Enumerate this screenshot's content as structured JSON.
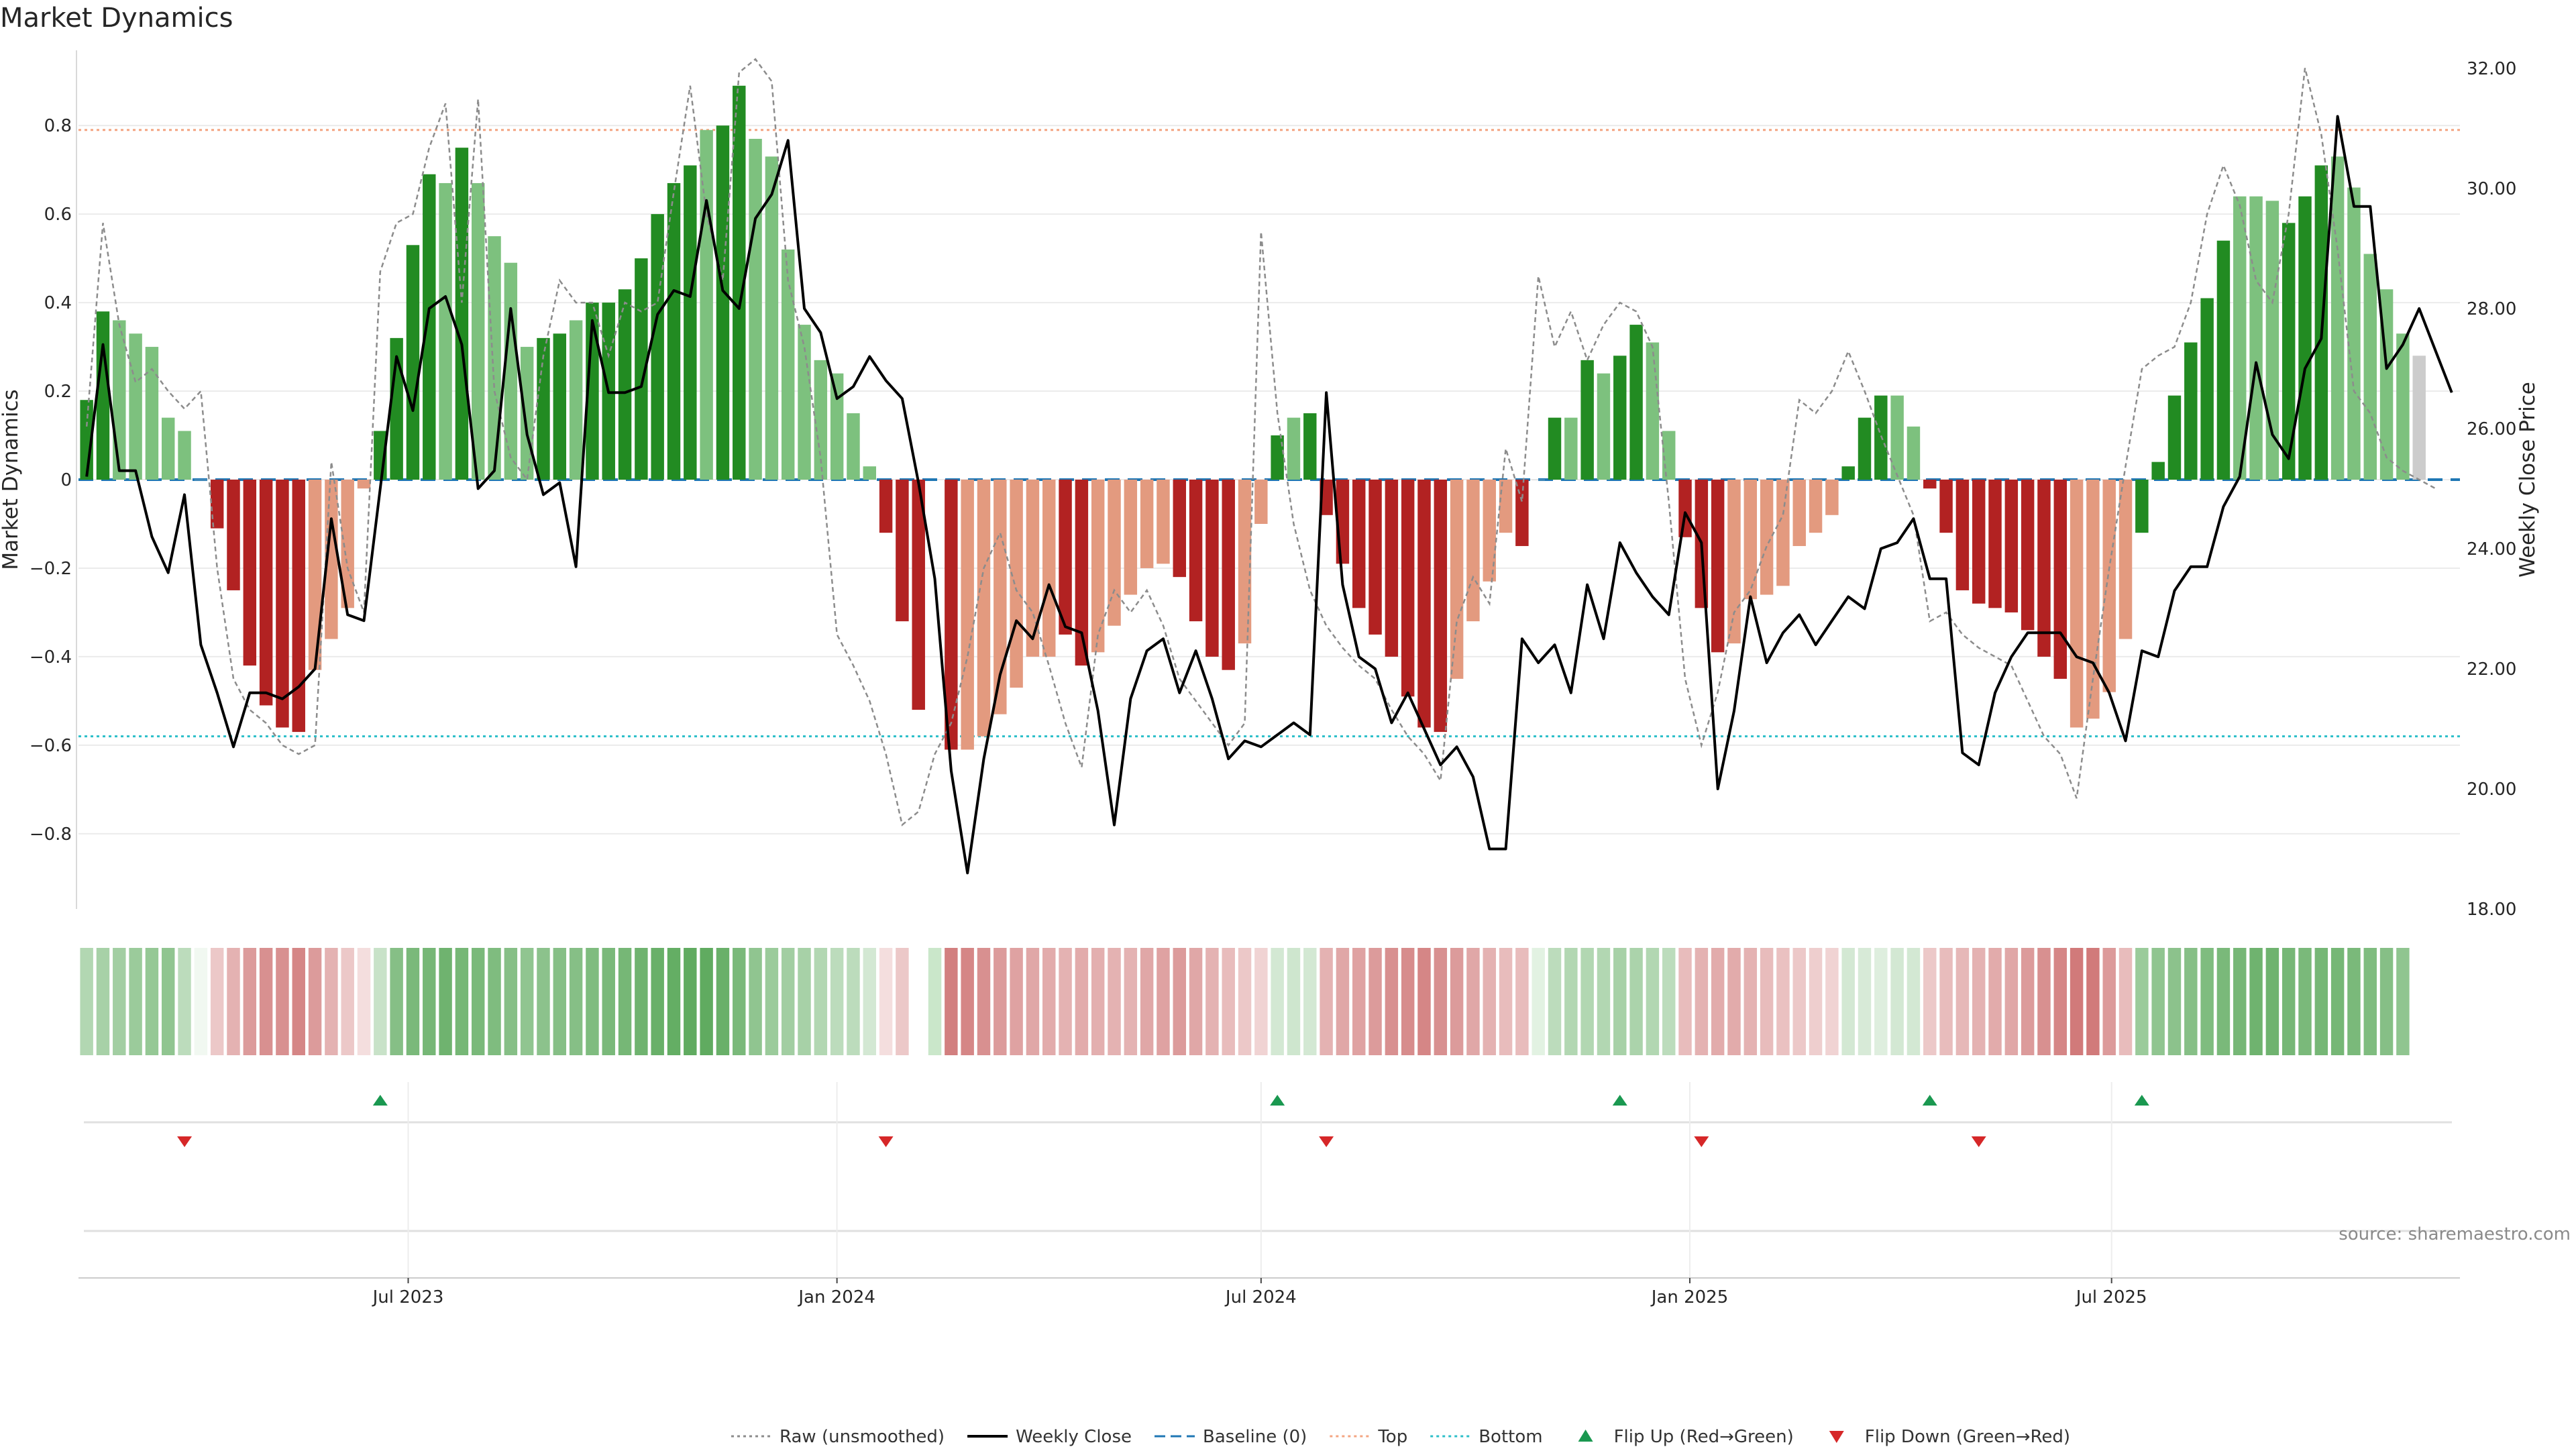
{
  "title": "Market Dynamics",
  "source_note": "source: sharemaestro.com",
  "chart_data": {
    "type": "bar",
    "title": "Market Dynamics",
    "ylabel_left": "Market Dynamics",
    "ylabel_right": "Weekly Close Price",
    "ylim_left": [
      -0.97,
      0.97
    ],
    "ylim_right": [
      18.0,
      32.3
    ],
    "yticks_left": [
      -0.8,
      -0.6,
      -0.4,
      -0.2,
      0,
      0.2,
      0.4,
      0.6,
      0.8
    ],
    "ytick_labels_left": [
      "−0.8",
      "−0.6",
      "−0.4",
      "−0.2",
      "0",
      "0.2",
      "0.4",
      "0.6",
      "0.8"
    ],
    "yticks_right": [
      18,
      20,
      22,
      24,
      26,
      28,
      30,
      32
    ],
    "ytick_labels_right": [
      "18.00",
      "20.00",
      "22.00",
      "24.00",
      "26.00",
      "28.00",
      "30.00",
      "32.00"
    ],
    "x_ticks": [
      {
        "date": "2023-07-01",
        "label": "Jul 2023"
      },
      {
        "date": "2024-01-01",
        "label": "Jan 2024"
      },
      {
        "date": "2024-07-01",
        "label": "Jul 2024"
      },
      {
        "date": "2025-01-01",
        "label": "Jan 2025"
      },
      {
        "date": "2025-07-01",
        "label": "Jul 2025"
      }
    ],
    "grid": true,
    "legend_position": "bottom-center",
    "reference_lines": {
      "top": 0.79,
      "bottom": -0.58,
      "baseline": 0
    },
    "weeks": [
      "2023-02-13",
      "2023-02-20",
      "2023-02-27",
      "2023-03-06",
      "2023-03-13",
      "2023-03-20",
      "2023-03-27",
      "2023-04-03",
      "2023-04-10",
      "2023-04-17",
      "2023-04-24",
      "2023-05-01",
      "2023-05-08",
      "2023-05-15",
      "2023-05-22",
      "2023-05-29",
      "2023-06-05",
      "2023-06-12",
      "2023-06-19",
      "2023-06-26",
      "2023-07-03",
      "2023-07-10",
      "2023-07-17",
      "2023-07-24",
      "2023-07-31",
      "2023-08-07",
      "2023-08-14",
      "2023-08-21",
      "2023-08-28",
      "2023-09-04",
      "2023-09-11",
      "2023-09-18",
      "2023-09-25",
      "2023-10-02",
      "2023-10-09",
      "2023-10-16",
      "2023-10-23",
      "2023-10-30",
      "2023-11-06",
      "2023-11-13",
      "2023-11-20",
      "2023-11-27",
      "2023-12-04",
      "2023-12-11",
      "2023-12-18",
      "2023-12-25",
      "2024-01-01",
      "2024-01-08",
      "2024-01-15",
      "2024-01-22",
      "2024-01-29",
      "2024-02-05",
      "2024-02-12",
      "2024-02-19",
      "2024-02-26",
      "2024-03-04",
      "2024-03-11",
      "2024-03-18",
      "2024-03-25",
      "2024-04-01",
      "2024-04-08",
      "2024-04-15",
      "2024-04-22",
      "2024-04-29",
      "2024-05-06",
      "2024-05-13",
      "2024-05-20",
      "2024-05-27",
      "2024-06-03",
      "2024-06-10",
      "2024-06-17",
      "2024-06-24",
      "2024-07-01",
      "2024-07-08",
      "2024-07-15",
      "2024-07-22",
      "2024-07-29",
      "2024-08-05",
      "2024-08-12",
      "2024-08-19",
      "2024-08-26",
      "2024-09-02",
      "2024-09-09",
      "2024-09-16",
      "2024-09-23",
      "2024-09-30",
      "2024-10-07",
      "2024-10-14",
      "2024-10-21",
      "2024-10-28",
      "2024-11-04",
      "2024-11-11",
      "2024-11-18",
      "2024-11-25",
      "2024-12-02",
      "2024-12-09",
      "2024-12-16",
      "2024-12-23",
      "2024-12-30",
      "2025-01-06",
      "2025-01-13",
      "2025-01-20",
      "2025-01-27",
      "2025-02-03",
      "2025-02-10",
      "2025-02-17",
      "2025-02-24",
      "2025-03-03",
      "2025-03-10",
      "2025-03-17",
      "2025-03-24",
      "2025-03-31",
      "2025-04-07",
      "2025-04-14",
      "2025-04-21",
      "2025-04-28",
      "2025-05-05",
      "2025-05-12",
      "2025-05-19",
      "2025-05-26",
      "2025-06-02",
      "2025-06-09",
      "2025-06-16",
      "2025-06-23",
      "2025-06-30",
      "2025-07-07",
      "2025-07-14",
      "2025-07-21",
      "2025-07-28",
      "2025-08-04",
      "2025-08-11",
      "2025-08-18",
      "2025-08-25",
      "2025-09-01",
      "2025-09-08",
      "2025-09-15",
      "2025-09-22",
      "2025-09-29",
      "2025-10-06",
      "2025-10-13",
      "2025-10-20",
      "2025-10-27",
      "2025-11-03",
      "2025-11-10",
      "2025-11-17",
      "2025-11-24"
    ],
    "series": [
      {
        "name": "Market Dynamics (smoothed)",
        "kind": "bar",
        "values": [
          0.18,
          0.38,
          0.36,
          0.33,
          0.3,
          0.14,
          0.11,
          0.0,
          -0.11,
          -0.25,
          -0.42,
          -0.51,
          -0.56,
          -0.57,
          -0.43,
          -0.36,
          -0.29,
          -0.02,
          0.11,
          0.32,
          0.53,
          0.69,
          0.67,
          0.75,
          0.67,
          0.55,
          0.49,
          0.3,
          0.32,
          0.33,
          0.36,
          0.4,
          0.4,
          0.43,
          0.5,
          0.6,
          0.67,
          0.71,
          0.79,
          0.8,
          0.89,
          0.77,
          0.73,
          0.52,
          0.35,
          0.27,
          0.24,
          0.15,
          0.03,
          -0.12,
          -0.32,
          -0.52,
          null,
          -0.61,
          -0.61,
          -0.58,
          -0.53,
          -0.47,
          -0.4,
          -0.4,
          -0.35,
          -0.42,
          -0.39,
          -0.33,
          -0.26,
          -0.2,
          -0.19,
          -0.22,
          -0.32,
          -0.4,
          -0.43,
          -0.37,
          -0.1,
          0.1,
          0.14,
          0.15,
          -0.08,
          -0.19,
          -0.29,
          -0.35,
          -0.4,
          -0.49,
          -0.56,
          -0.57,
          -0.45,
          -0.32,
          -0.23,
          -0.12,
          -0.15,
          0.0,
          0.14,
          0.14,
          0.27,
          0.24,
          0.28,
          0.35,
          0.31,
          0.11,
          -0.13,
          -0.29,
          -0.39,
          -0.37,
          -0.27,
          -0.26,
          -0.24,
          -0.15,
          -0.12,
          -0.08,
          0.03,
          0.14,
          0.19,
          0.19,
          0.12,
          -0.02,
          -0.12,
          -0.25,
          -0.28,
          -0.29,
          -0.3,
          -0.34,
          -0.4,
          -0.45,
          -0.56,
          -0.54,
          -0.48,
          -0.36,
          -0.12,
          0.04,
          0.19,
          0.31,
          0.41,
          0.54,
          0.64,
          0.64,
          0.63,
          0.58,
          0.64,
          0.71,
          0.73,
          0.66,
          0.51,
          0.43,
          0.33,
          0.28
        ],
        "state": [
          "G",
          "G",
          "g",
          "g",
          "g",
          "g",
          "g",
          "n",
          "R",
          "R",
          "R",
          "R",
          "R",
          "R",
          "r",
          "r",
          "r",
          "r",
          "G",
          "G",
          "G",
          "G",
          "g",
          "G",
          "g",
          "g",
          "g",
          "g",
          "G",
          "G",
          "g",
          "G",
          "G",
          "G",
          "G",
          "G",
          "G",
          "G",
          "g",
          "G",
          "G",
          "g",
          "g",
          "g",
          "g",
          "g",
          "g",
          "g",
          "g",
          "R",
          "R",
          "R",
          "n",
          "R",
          "r",
          "r",
          "r",
          "r",
          "r",
          "r",
          "R",
          "R",
          "r",
          "r",
          "r",
          "r",
          "r",
          "R",
          "R",
          "R",
          "R",
          "r",
          "r",
          "G",
          "g",
          "G",
          "R",
          "R",
          "R",
          "R",
          "R",
          "R",
          "R",
          "R",
          "r",
          "r",
          "r",
          "r",
          "R",
          "n",
          "G",
          "g",
          "G",
          "g",
          "G",
          "G",
          "g",
          "g",
          "R",
          "R",
          "R",
          "r",
          "r",
          "r",
          "r",
          "r",
          "r",
          "r",
          "G",
          "G",
          "G",
          "g",
          "g",
          "R",
          "R",
          "R",
          "R",
          "R",
          "R",
          "R",
          "R",
          "R",
          "r",
          "r",
          "r",
          "r",
          "G",
          "G",
          "G",
          "G",
          "G",
          "G",
          "g",
          "g",
          "g",
          "G",
          "G",
          "G",
          "g",
          "g",
          "g",
          "g",
          "g"
        ],
        "heat": [
          0.35,
          0.4,
          0.42,
          0.45,
          0.48,
          0.5,
          0.3,
          0.15,
          0.25,
          0.35,
          0.45,
          0.5,
          0.5,
          0.55,
          0.45,
          0.35,
          0.25,
          0.15,
          0.25,
          0.55,
          0.6,
          0.62,
          0.65,
          0.62,
          0.6,
          0.58,
          0.55,
          0.5,
          0.52,
          0.55,
          0.55,
          0.58,
          0.6,
          0.62,
          0.65,
          0.68,
          0.7,
          0.72,
          0.72,
          0.68,
          0.6,
          0.5,
          0.45,
          0.42,
          0.4,
          0.35,
          0.3,
          0.3,
          0.2,
          0.15,
          0.25,
          null,
          0.55,
          0.58,
          0.55,
          0.5,
          0.45,
          0.42,
          0.4,
          0.38,
          0.35,
          0.38,
          0.36,
          0.35,
          0.35,
          0.4,
          0.42,
          0.45,
          0.4,
          0.35,
          0.3,
          0.25,
          0.2,
          0.2,
          0.22,
          0.2,
          0.35,
          0.4,
          0.42,
          0.45,
          0.5,
          0.52,
          0.55,
          0.5,
          0.45,
          0.4,
          0.35,
          0.3,
          0.3,
          0.3,
          0.3,
          0.35,
          0.35,
          0.35,
          0.4,
          0.38,
          0.35,
          0.3,
          0.3,
          0.35,
          0.38,
          0.38,
          0.35,
          0.3,
          0.28,
          0.25,
          0.22,
          0.2,
          0.2,
          0.18,
          0.15,
          0.2,
          0.2,
          0.25,
          0.3,
          0.32,
          0.35,
          0.38,
          0.4,
          0.45,
          0.5,
          0.55,
          0.6,
          0.6,
          0.45,
          0.3,
          0.45,
          0.5,
          0.52,
          0.55,
          0.58,
          0.6,
          0.62,
          0.65,
          0.65,
          0.62,
          0.6,
          0.62,
          0.62,
          0.6,
          0.58,
          0.55,
          0.5,
          0.5,
          0.45,
          0.4
        ]
      },
      {
        "name": "Raw (unsmoothed)",
        "kind": "line",
        "values": [
          0.12,
          0.58,
          0.35,
          0.22,
          0.25,
          0.2,
          0.16,
          0.2,
          -0.2,
          -0.45,
          -0.52,
          -0.55,
          -0.6,
          -0.62,
          -0.6,
          0.04,
          -0.2,
          -0.3,
          0.47,
          0.58,
          0.6,
          0.75,
          0.85,
          0.4,
          0.86,
          0.2,
          0.05,
          0.0,
          0.28,
          0.45,
          0.4,
          0.4,
          0.28,
          0.4,
          0.38,
          0.4,
          0.65,
          0.89,
          0.6,
          0.45,
          0.92,
          0.95,
          0.9,
          0.45,
          0.3,
          0.05,
          -0.35,
          -0.42,
          -0.5,
          -0.62,
          -0.78,
          -0.75,
          -0.62,
          -0.55,
          -0.4,
          -0.2,
          -0.12,
          -0.25,
          -0.3,
          -0.42,
          -0.55,
          -0.65,
          -0.35,
          -0.25,
          -0.3,
          -0.25,
          -0.33,
          -0.45,
          -0.5,
          -0.55,
          -0.6,
          -0.55,
          0.56,
          0.15,
          -0.1,
          -0.25,
          -0.33,
          -0.38,
          -0.42,
          -0.45,
          -0.52,
          -0.58,
          -0.62,
          -0.68,
          -0.32,
          -0.22,
          -0.28,
          0.07,
          -0.05,
          0.46,
          0.3,
          0.38,
          0.27,
          0.35,
          0.4,
          0.38,
          0.3,
          -0.05,
          -0.45,
          -0.6,
          -0.48,
          -0.3,
          -0.25,
          -0.15,
          -0.08,
          0.18,
          0.15,
          0.2,
          0.29,
          0.2,
          0.1,
          0.01,
          -0.08,
          -0.32,
          -0.3,
          -0.35,
          -0.38,
          -0.4,
          -0.42,
          -0.5,
          -0.58,
          -0.62,
          -0.72,
          -0.45,
          -0.2,
          0.03,
          0.25,
          0.28,
          0.3,
          0.4,
          0.6,
          0.71,
          0.62,
          0.45,
          0.4,
          0.6,
          0.93,
          0.78,
          0.52,
          0.2,
          0.15,
          0.05,
          0.02,
          0.0,
          -0.02
        ]
      },
      {
        "name": "Weekly Close",
        "kind": "line",
        "axis": "right",
        "values": [
          25.2,
          27.4,
          25.3,
          25.3,
          24.2,
          23.6,
          24.9,
          22.4,
          21.6,
          20.7,
          21.6,
          21.6,
          21.5,
          21.7,
          22.0,
          24.5,
          22.9,
          22.8,
          25.0,
          27.2,
          26.3,
          28.0,
          28.2,
          27.4,
          25.0,
          25.3,
          28.0,
          25.9,
          24.9,
          25.1,
          23.7,
          27.8,
          26.6,
          26.6,
          26.7,
          27.9,
          28.3,
          28.2,
          29.8,
          28.3,
          28.0,
          29.5,
          29.9,
          30.8,
          28.0,
          27.6,
          26.5,
          26.7,
          27.2,
          26.8,
          26.5,
          25.1,
          23.5,
          20.3,
          18.6,
          20.5,
          21.9,
          22.8,
          22.5,
          23.4,
          22.7,
          22.6,
          21.3,
          19.4,
          21.5,
          22.3,
          22.5,
          21.6,
          22.3,
          21.5,
          20.5,
          20.8,
          20.7,
          20.9,
          21.1,
          20.9,
          26.6,
          23.4,
          22.2,
          22.0,
          21.1,
          21.6,
          21.0,
          20.4,
          20.7,
          20.2,
          19.0,
          19.0,
          22.5,
          22.1,
          22.4,
          21.6,
          23.4,
          22.5,
          24.1,
          23.6,
          23.2,
          22.9,
          24.6,
          24.1,
          20.0,
          21.3,
          23.2,
          22.1,
          22.6,
          22.9,
          22.4,
          22.8,
          23.2,
          23.0,
          24.0,
          24.1,
          24.5,
          23.5,
          23.5,
          20.6,
          20.4,
          21.6,
          22.2,
          22.6,
          22.6,
          22.6,
          22.2,
          22.1,
          21.6,
          20.8,
          22.3,
          22.2,
          23.3,
          23.7,
          23.7,
          24.7,
          25.2,
          27.1,
          25.9,
          25.5,
          27.0,
          27.5,
          31.2,
          29.7,
          29.7,
          27.0,
          27.4,
          28.0,
          27.3,
          26.6
        ]
      }
    ],
    "flips_up": [
      "2023-06-19",
      "2024-07-08",
      "2024-12-02",
      "2025-04-14",
      "2025-07-14"
    ],
    "flips_down": [
      "2023-03-27",
      "2024-01-22",
      "2024-07-29",
      "2025-01-06",
      "2025-05-05"
    ],
    "colors": {
      "strong_up": "#228b22",
      "weak_up": "#7dc17e",
      "strong_down": "#b22222",
      "weak_down": "#e39a7f",
      "raw_line": "#8c8c8c",
      "close_line": "#000000",
      "baseline": "#1f77b4",
      "top_line": "#f4a582",
      "bottom_line": "#2cbfc9",
      "flip_up": "#1a9850",
      "flip_down": "#d62728"
    },
    "legend": [
      {
        "label": "Raw (unsmoothed)",
        "style": "dotted",
        "color": "#8c8c8c"
      },
      {
        "label": "Weekly Close",
        "style": "solid",
        "color": "#000000"
      },
      {
        "label": "Baseline (0)",
        "style": "dashed",
        "color": "#1f77b4"
      },
      {
        "label": "Top",
        "style": "dotted",
        "color": "#f4a582"
      },
      {
        "label": "Bottom",
        "style": "dotted",
        "color": "#2cbfc9"
      },
      {
        "label": "Flip Up (Red→Green)",
        "style": "triangle-up",
        "color": "#1a9850"
      },
      {
        "label": "Flip Down (Green→Red)",
        "style": "triangle-down",
        "color": "#d62728"
      }
    ]
  }
}
